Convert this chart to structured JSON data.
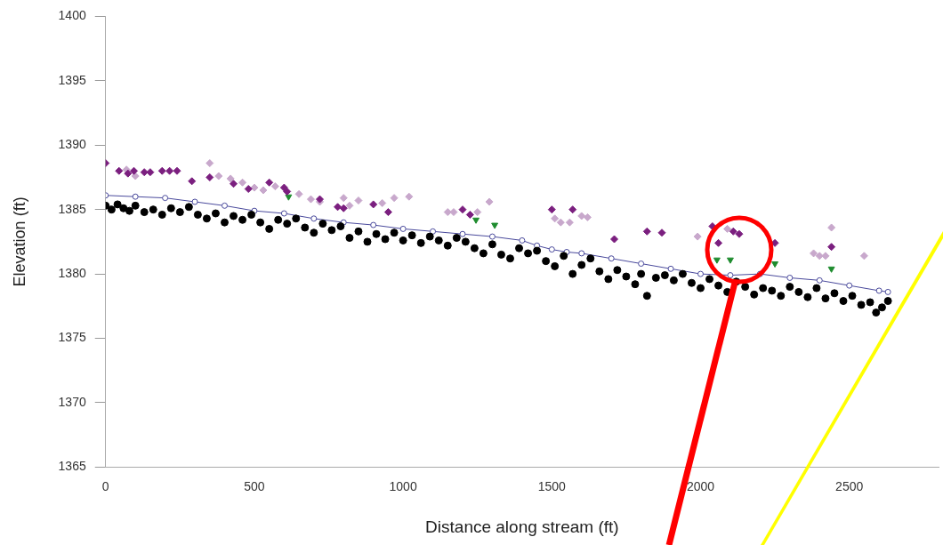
{
  "chart_data": {
    "type": "scatter",
    "xlabel": "Distance along stream (ft)",
    "ylabel": "Elevation (ft)",
    "xlim": [
      0,
      2800
    ],
    "ylim": [
      1365,
      1400
    ],
    "xticks": [
      0,
      500,
      1000,
      1500,
      2000,
      2500
    ],
    "yticks": [
      1365,
      1370,
      1375,
      1380,
      1385,
      1390,
      1395,
      1400
    ],
    "grid": false,
    "legend": false,
    "series": [
      {
        "marker": "circle",
        "color": "#000000",
        "x": [
          0,
          20,
          40,
          60,
          80,
          100,
          130,
          160,
          190,
          220,
          250,
          280,
          310,
          340,
          370,
          400,
          430,
          460,
          490,
          520,
          550,
          580,
          610,
          640,
          670,
          700,
          730,
          760,
          790,
          820,
          850,
          880,
          910,
          940,
          970,
          1000,
          1030,
          1060,
          1090,
          1120,
          1150,
          1180,
          1210,
          1240,
          1270,
          1300,
          1330,
          1360,
          1390,
          1420,
          1450,
          1480,
          1510,
          1540,
          1570,
          1600,
          1630,
          1660,
          1690,
          1720,
          1750,
          1780,
          1800,
          1820,
          1850,
          1880,
          1910,
          1940,
          1970,
          2000,
          2030,
          2060,
          2090,
          2120,
          2150,
          2180,
          2210,
          2240,
          2270,
          2300,
          2330,
          2360,
          2390,
          2420,
          2450,
          2480,
          2510,
          2540,
          2570,
          2590,
          2610,
          2630
        ],
        "values": [
          1385.3,
          1385.0,
          1385.4,
          1385.1,
          1384.9,
          1385.3,
          1384.8,
          1385.0,
          1384.6,
          1385.1,
          1384.8,
          1385.2,
          1384.6,
          1384.3,
          1384.7,
          1384.0,
          1384.5,
          1384.2,
          1384.6,
          1384.0,
          1383.5,
          1384.2,
          1383.9,
          1384.3,
          1383.6,
          1383.2,
          1383.9,
          1383.4,
          1383.7,
          1382.8,
          1383.3,
          1382.5,
          1383.1,
          1382.7,
          1383.2,
          1382.6,
          1383.0,
          1382.4,
          1382.9,
          1382.6,
          1382.2,
          1382.8,
          1382.5,
          1382.0,
          1381.6,
          1382.3,
          1381.5,
          1381.2,
          1382.0,
          1381.6,
          1381.8,
          1381.0,
          1380.6,
          1381.4,
          1380.0,
          1380.7,
          1381.2,
          1380.2,
          1379.6,
          1380.3,
          1379.8,
          1379.2,
          1380.0,
          1378.3,
          1379.7,
          1379.9,
          1379.5,
          1380.0,
          1379.3,
          1378.9,
          1379.6,
          1379.1,
          1378.6,
          1379.4,
          1379.0,
          1378.4,
          1378.9,
          1378.7,
          1378.3,
          1379.0,
          1378.6,
          1378.2,
          1378.9,
          1378.1,
          1378.5,
          1377.9,
          1378.3,
          1377.6,
          1377.8,
          1377.0,
          1377.4,
          1377.9
        ]
      },
      {
        "type": "line",
        "marker": "circle",
        "color": "#4a4a9c",
        "x": [
          0,
          100,
          200,
          300,
          400,
          500,
          600,
          700,
          800,
          900,
          1000,
          1100,
          1200,
          1300,
          1400,
          1450,
          1500,
          1550,
          1600,
          1700,
          1800,
          1900,
          2000,
          2100,
          2200,
          2300,
          2400,
          2500,
          2600,
          2630
        ],
        "values": [
          1386.1,
          1386.0,
          1385.9,
          1385.6,
          1385.3,
          1384.9,
          1384.7,
          1384.3,
          1384.0,
          1383.8,
          1383.5,
          1383.3,
          1383.1,
          1382.9,
          1382.6,
          1382.2,
          1381.9,
          1381.7,
          1381.6,
          1381.2,
          1380.8,
          1380.4,
          1380.0,
          1379.9,
          1380.0,
          1379.7,
          1379.5,
          1379.1,
          1378.7,
          1378.6
        ]
      },
      {
        "marker": "diamond",
        "color": "#7b1f7f",
        "x": [
          0,
          45,
          75,
          95,
          130,
          150,
          190,
          215,
          240,
          290,
          350,
          430,
          480,
          550,
          600,
          610,
          720,
          780,
          800,
          900,
          950,
          1200,
          1225,
          1500,
          1570,
          1710,
          1820,
          1870,
          2040,
          2060,
          2110,
          2130,
          2250,
          2440
        ],
        "values": [
          1388.6,
          1388.0,
          1387.8,
          1388.0,
          1387.9,
          1387.9,
          1388.0,
          1388.0,
          1388.0,
          1387.2,
          1387.5,
          1387.0,
          1386.6,
          1387.1,
          1386.7,
          1386.4,
          1385.8,
          1385.2,
          1385.1,
          1385.4,
          1384.8,
          1385.0,
          1384.6,
          1385.0,
          1385.0,
          1382.7,
          1383.3,
          1383.2,
          1383.7,
          1382.4,
          1383.3,
          1383.1,
          1382.4,
          1382.1
        ]
      },
      {
        "marker": "diamond",
        "color": "#c8a8cc",
        "x": [
          70,
          100,
          350,
          380,
          420,
          460,
          500,
          530,
          570,
          650,
          690,
          720,
          800,
          820,
          850,
          930,
          970,
          1020,
          1150,
          1170,
          1250,
          1290,
          1510,
          1530,
          1560,
          1600,
          1620,
          1990,
          2090,
          2380,
          2400,
          2420,
          2440,
          2550
        ],
        "values": [
          1388.1,
          1387.6,
          1388.6,
          1387.6,
          1387.4,
          1387.1,
          1386.7,
          1386.5,
          1386.8,
          1386.2,
          1385.8,
          1385.6,
          1385.9,
          1385.3,
          1385.7,
          1385.5,
          1385.9,
          1386.0,
          1384.8,
          1384.8,
          1384.8,
          1385.6,
          1384.3,
          1384.0,
          1384.0,
          1384.5,
          1384.4,
          1382.9,
          1383.5,
          1381.6,
          1381.4,
          1381.4,
          1383.6,
          1381.4
        ]
      },
      {
        "marker": "triangle",
        "color": "#1e8c2e",
        "x": [
          615,
          1245,
          1308,
          2055,
          2100,
          2250,
          2440
        ],
        "values": [
          1386.0,
          1384.2,
          1383.8,
          1381.1,
          1381.1,
          1380.8,
          1380.4
        ]
      }
    ]
  }
}
